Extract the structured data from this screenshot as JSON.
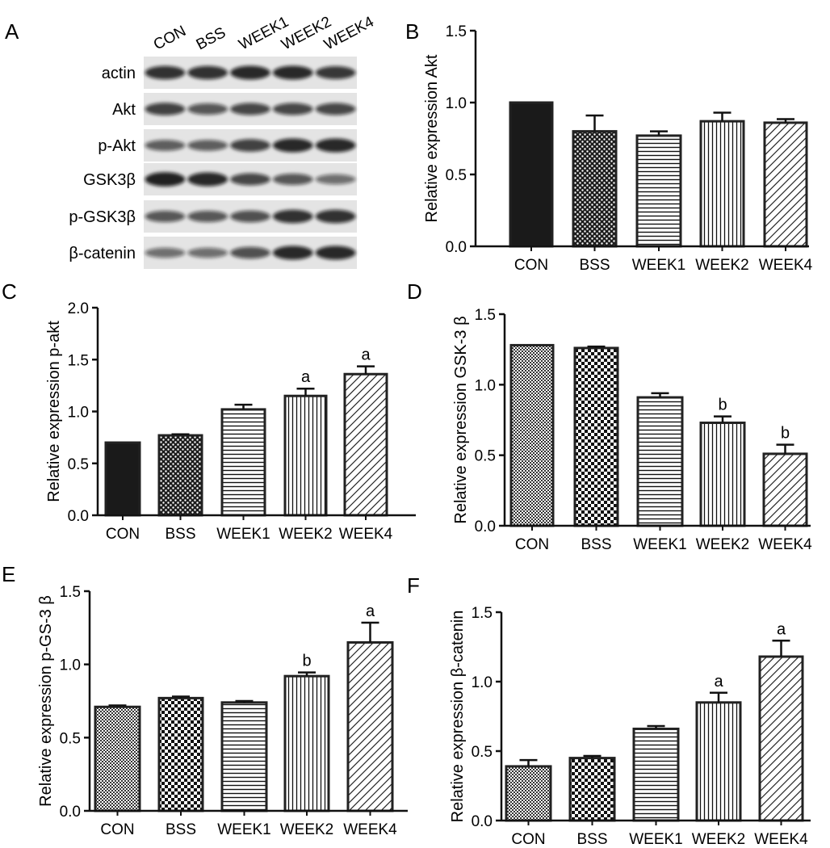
{
  "blot": {
    "letter": "A",
    "lanes": [
      "CON",
      "BSS",
      "WEEK1",
      "WEEK2",
      "WEEK4"
    ],
    "rows": [
      {
        "label": "actin",
        "intensity": [
          0.85,
          0.85,
          0.9,
          0.9,
          0.8
        ]
      },
      {
        "label": "Akt",
        "intensity": [
          0.75,
          0.6,
          0.7,
          0.7,
          0.7
        ]
      },
      {
        "label": "p-Akt",
        "intensity": [
          0.55,
          0.55,
          0.75,
          0.9,
          0.9
        ]
      },
      {
        "label": "GSK3β",
        "intensity": [
          0.95,
          0.9,
          0.7,
          0.6,
          0.45
        ]
      },
      {
        "label": "p-GSK3β",
        "intensity": [
          0.6,
          0.6,
          0.65,
          0.85,
          0.85
        ]
      },
      {
        "label": "β-catenin",
        "intensity": [
          0.45,
          0.45,
          0.65,
          0.9,
          0.9
        ]
      }
    ]
  },
  "chart_data": [
    {
      "letter": "B",
      "type": "bar",
      "categories": [
        "CON",
        "BSS",
        "WEEK1",
        "WEEK2",
        "WEEK4"
      ],
      "values": [
        1.0,
        0.8,
        0.77,
        0.87,
        0.86
      ],
      "errors": [
        0.0,
        0.11,
        0.03,
        0.06,
        0.025
      ],
      "significance": [
        "",
        "",
        "",
        "",
        ""
      ],
      "ylabel": "Relative expression Akt",
      "ylim": [
        0,
        1.5
      ],
      "yticks": [
        "0.0",
        "0.5",
        "1.0",
        "1.5"
      ],
      "patterns": [
        "solid",
        "dots",
        "hlines",
        "vlines",
        "diag"
      ]
    },
    {
      "letter": "C",
      "type": "bar",
      "categories": [
        "CON",
        "BSS",
        "WEEK1",
        "WEEK2",
        "WEEK4"
      ],
      "values": [
        0.7,
        0.77,
        1.02,
        1.15,
        1.36
      ],
      "errors": [
        0.0,
        0.01,
        0.045,
        0.07,
        0.075
      ],
      "significance": [
        "",
        "",
        "",
        "a",
        "a"
      ],
      "ylabel": "Relative expression p-akt",
      "ylim": [
        0,
        2.0
      ],
      "yticks": [
        "0.0",
        "0.5",
        "1.0",
        "1.5",
        "2.0"
      ],
      "patterns": [
        "solid",
        "dots",
        "hlines",
        "vlines",
        "diag"
      ]
    },
    {
      "letter": "D",
      "type": "bar",
      "categories": [
        "CON",
        "BSS",
        "WEEK1",
        "WEEK2",
        "WEEK4"
      ],
      "values": [
        1.28,
        1.26,
        0.91,
        0.73,
        0.51
      ],
      "errors": [
        0.0,
        0.01,
        0.03,
        0.045,
        0.065
      ],
      "significance": [
        "",
        "",
        "",
        "b",
        "b"
      ],
      "ylabel": "Relative expression GSK-3 β",
      "ylim": [
        0,
        1.5
      ],
      "yticks": [
        "0.0",
        "0.5",
        "1.0",
        "1.5"
      ],
      "patterns": [
        "finecheck",
        "check",
        "hlines",
        "vlines",
        "diag"
      ]
    },
    {
      "letter": "E",
      "type": "bar",
      "categories": [
        "CON",
        "BSS",
        "WEEK1",
        "WEEK2",
        "WEEK4"
      ],
      "values": [
        0.71,
        0.77,
        0.74,
        0.92,
        1.15
      ],
      "errors": [
        0.01,
        0.01,
        0.01,
        0.025,
        0.135
      ],
      "significance": [
        "",
        "",
        "",
        "b",
        "a"
      ],
      "ylabel": "Relative expression p-GS-3 β",
      "ylim": [
        0,
        1.5
      ],
      "yticks": [
        "0.0",
        "0.5",
        "1.0",
        "1.5"
      ],
      "patterns": [
        "finecheck",
        "check",
        "hlines",
        "vlines",
        "diag"
      ]
    },
    {
      "letter": "F",
      "type": "bar",
      "categories": [
        "CON",
        "BSS",
        "WEEK1",
        "WEEK2",
        "WEEK4"
      ],
      "values": [
        0.39,
        0.45,
        0.66,
        0.85,
        1.18
      ],
      "errors": [
        0.045,
        0.015,
        0.02,
        0.07,
        0.115
      ],
      "significance": [
        "",
        "",
        "",
        "a",
        "a"
      ],
      "ylabel": "Relative expression β-catenin",
      "ylim": [
        0,
        1.5
      ],
      "yticks": [
        "0.0",
        "0.5",
        "1.0",
        "1.5"
      ],
      "patterns": [
        "finecheck",
        "check",
        "hlines",
        "vlines",
        "diag"
      ]
    }
  ],
  "colors": {
    "ink": "#000000",
    "bar_outline": "#222222",
    "blot_bg": "#e4e4e4",
    "band": "#111111"
  }
}
